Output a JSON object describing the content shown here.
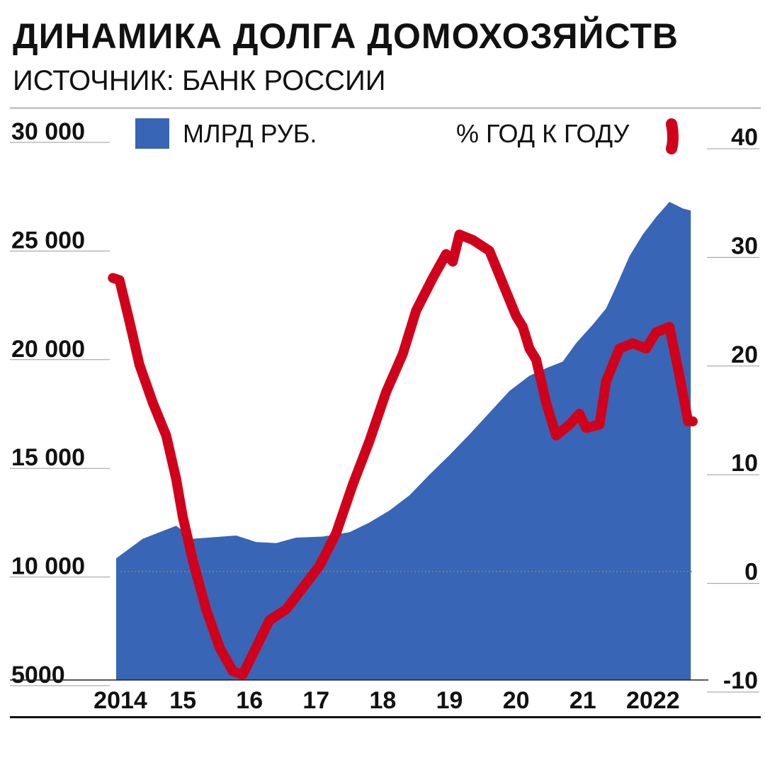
{
  "header": {
    "title": "ДИНАМИКА ДОЛГА ДОМОХОЗЯЙСТВ",
    "subtitle": "ИСТОЧНИК: БАНК РОССИИ"
  },
  "legend": {
    "area_label": "МЛРД РУБ.",
    "line_label": "% ГОД К ГОДУ"
  },
  "colors": {
    "area": "#3865b5",
    "line": "#d0021b",
    "zero_line": "#8a8a5a"
  },
  "chart_data": {
    "type": "area+line",
    "x_tick_labels": [
      "2014",
      "15",
      "16",
      "17",
      "18",
      "19",
      "20",
      "21",
      "2022"
    ],
    "x_tick_positions": [
      2014,
      2015,
      2016,
      2017,
      2018,
      2019,
      2020,
      2021,
      2022
    ],
    "xlim": [
      2014.0,
      2022.65
    ],
    "y_left": {
      "ylim": [
        5000,
        30000
      ],
      "ticks": [
        "5000",
        "10 000",
        "15 000",
        "20 000",
        "25 000",
        "30 000"
      ],
      "tick_values": [
        5000,
        10000,
        15000,
        20000,
        25000,
        30000
      ]
    },
    "y_right": {
      "ylim": [
        -10,
        40
      ],
      "ticks": [
        "-10",
        "0",
        "10",
        "20",
        "30",
        "40"
      ],
      "tick_values": [
        -10,
        0,
        10,
        20,
        30,
        40
      ]
    },
    "series": [
      {
        "name": "МЛРД РУБ.",
        "type": "area",
        "axis": "left",
        "points": [
          [
            2014.0,
            10600
          ],
          [
            2014.4,
            11500
          ],
          [
            2014.9,
            12100
          ],
          [
            2015.15,
            11500
          ],
          [
            2015.8,
            11650
          ],
          [
            2016.1,
            11350
          ],
          [
            2016.4,
            11300
          ],
          [
            2016.7,
            11550
          ],
          [
            2017.1,
            11600
          ],
          [
            2017.5,
            11800
          ],
          [
            2017.8,
            12250
          ],
          [
            2018.1,
            12800
          ],
          [
            2018.4,
            13500
          ],
          [
            2018.7,
            14450
          ],
          [
            2019.0,
            15350
          ],
          [
            2019.3,
            16300
          ],
          [
            2019.6,
            17300
          ],
          [
            2019.9,
            18300
          ],
          [
            2020.2,
            19000
          ],
          [
            2020.45,
            19350
          ],
          [
            2020.7,
            19650
          ],
          [
            2020.9,
            20500
          ],
          [
            2021.15,
            21350
          ],
          [
            2021.35,
            22100
          ],
          [
            2021.5,
            23100
          ],
          [
            2021.7,
            24500
          ],
          [
            2021.9,
            25500
          ],
          [
            2022.1,
            26300
          ],
          [
            2022.3,
            27000
          ],
          [
            2022.5,
            26700
          ],
          [
            2022.62,
            26600
          ]
        ]
      },
      {
        "name": "% ГОД К ГОДУ",
        "type": "line",
        "axis": "right",
        "points": [
          [
            2013.95,
            27
          ],
          [
            2014.05,
            26.8
          ],
          [
            2014.2,
            23
          ],
          [
            2014.35,
            19
          ],
          [
            2014.55,
            15.5
          ],
          [
            2014.75,
            12.5
          ],
          [
            2014.9,
            8.5
          ],
          [
            2015.0,
            5
          ],
          [
            2015.15,
            1
          ],
          [
            2015.35,
            -3.5
          ],
          [
            2015.55,
            -7
          ],
          [
            2015.75,
            -9.2
          ],
          [
            2015.9,
            -9.5
          ],
          [
            2016.1,
            -7
          ],
          [
            2016.3,
            -4.5
          ],
          [
            2016.55,
            -3.5
          ],
          [
            2016.8,
            -1.5
          ],
          [
            2017.05,
            0.5
          ],
          [
            2017.3,
            3.5
          ],
          [
            2017.55,
            8
          ],
          [
            2017.8,
            12
          ],
          [
            2018.05,
            16.5
          ],
          [
            2018.3,
            20
          ],
          [
            2018.5,
            24
          ],
          [
            2018.75,
            27
          ],
          [
            2018.95,
            29.2
          ],
          [
            2019.05,
            28.5
          ],
          [
            2019.15,
            31
          ],
          [
            2019.35,
            30.5
          ],
          [
            2019.6,
            29.5
          ],
          [
            2019.8,
            26.5
          ],
          [
            2020.0,
            23.5
          ],
          [
            2020.1,
            22.5
          ],
          [
            2020.2,
            20.5
          ],
          [
            2020.3,
            19.5
          ],
          [
            2020.45,
            15.5
          ],
          [
            2020.6,
            12.5
          ],
          [
            2020.8,
            13.5
          ],
          [
            2020.95,
            14.5
          ],
          [
            2021.05,
            13.2
          ],
          [
            2021.25,
            13.5
          ],
          [
            2021.35,
            17.5
          ],
          [
            2021.55,
            20.5
          ],
          [
            2021.75,
            21
          ],
          [
            2021.95,
            20.5
          ],
          [
            2022.1,
            22
          ],
          [
            2022.3,
            22.5
          ],
          [
            2022.45,
            18
          ],
          [
            2022.58,
            13.8
          ],
          [
            2022.65,
            13.8
          ]
        ]
      }
    ],
    "zero_reference_line": {
      "axis": "right",
      "value": 0,
      "style": "dotted"
    }
  }
}
